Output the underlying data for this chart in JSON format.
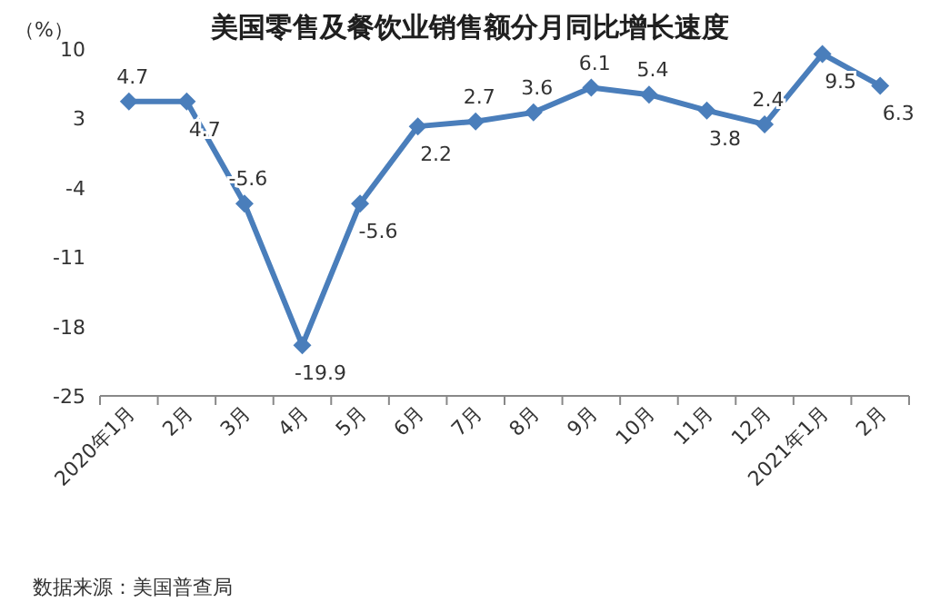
{
  "chart_data": {
    "type": "line",
    "title": "美国零售及餐饮业销售额分月同比增长速度",
    "ylabel": "（%）",
    "categories": [
      "2020年1月",
      "2月",
      "3月",
      "4月",
      "5月",
      "6月",
      "7月",
      "8月",
      "9月",
      "10月",
      "11月",
      "12月",
      "2021年1月",
      "2月"
    ],
    "series": [
      {
        "color": "#4a7ebb",
        "values": [
          4.7,
          4.7,
          -5.6,
          -19.9,
          -5.6,
          2.2,
          2.7,
          3.6,
          6.1,
          5.4,
          3.8,
          2.4,
          9.5,
          6.3
        ]
      }
    ],
    "ylim": [
      -25,
      10
    ],
    "yticks": [
      -25,
      -18,
      -11,
      -4,
      3,
      10
    ],
    "marker": "diamond",
    "data_labels": true,
    "annotations": [
      "数据来源：美国普查局"
    ]
  }
}
